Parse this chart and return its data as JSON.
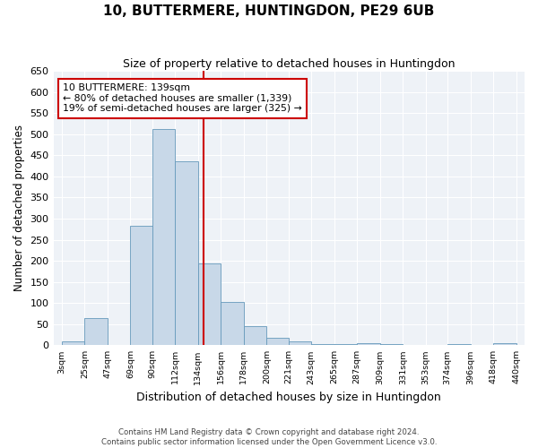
{
  "title": "10, BUTTERMERE, HUNTINGDON, PE29 6UB",
  "subtitle": "Size of property relative to detached houses in Huntingdon",
  "xlabel": "Distribution of detached houses by size in Huntingdon",
  "ylabel": "Number of detached properties",
  "bin_labels": [
    "3sqm",
    "25sqm",
    "47sqm",
    "69sqm",
    "90sqm",
    "112sqm",
    "134sqm",
    "156sqm",
    "178sqm",
    "200sqm",
    "221sqm",
    "243sqm",
    "265sqm",
    "287sqm",
    "309sqm",
    "331sqm",
    "353sqm",
    "374sqm",
    "396sqm",
    "418sqm",
    "440sqm"
  ],
  "bin_edges": [
    3,
    25,
    47,
    69,
    90,
    112,
    134,
    156,
    178,
    200,
    221,
    243,
    265,
    287,
    309,
    331,
    353,
    374,
    396,
    418,
    440
  ],
  "bar_heights": [
    10,
    65,
    0,
    283,
    513,
    435,
    193,
    103,
    46,
    18,
    10,
    2,
    2,
    5,
    2,
    0,
    0,
    2,
    0,
    5
  ],
  "bar_color": "#c8d8e8",
  "bar_edge_color": "#6699bb",
  "property_value": 139,
  "vline_color": "#cc0000",
  "annotation_line1": "10 BUTTERMERE: 139sqm",
  "annotation_line2": "← 80% of detached houses are smaller (1,339)",
  "annotation_line3": "19% of semi-detached houses are larger (325) →",
  "annotation_box_color": "#cc0000",
  "ylim": [
    0,
    650
  ],
  "yticks": [
    0,
    50,
    100,
    150,
    200,
    250,
    300,
    350,
    400,
    450,
    500,
    550,
    600,
    650
  ],
  "bg_color": "#eef2f7",
  "grid_color": "#ffffff",
  "footer1": "Contains HM Land Registry data © Crown copyright and database right 2024.",
  "footer2": "Contains public sector information licensed under the Open Government Licence v3.0."
}
